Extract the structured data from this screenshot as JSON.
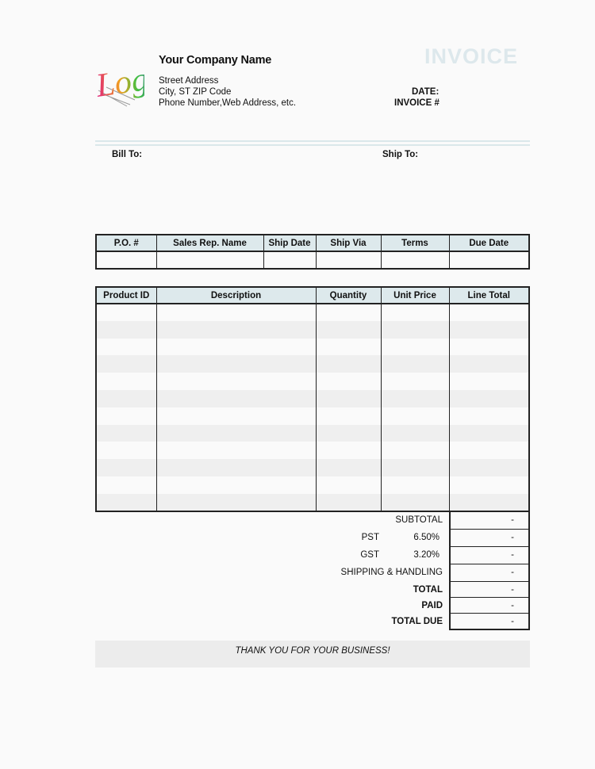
{
  "logo": {
    "text": "Logo"
  },
  "company": {
    "name": "Your Company Name",
    "street": "Street Address",
    "city": "City, ST  ZIP Code",
    "contact": "Phone Number,Web Address, etc."
  },
  "title": "INVOICE",
  "meta": {
    "date_label": "DATE:",
    "invoice_label": "INVOICE #"
  },
  "bill_to": "Bill To:",
  "ship_to": "Ship To:",
  "order_table": {
    "headers": [
      "P.O. #",
      "Sales Rep. Name",
      "Ship Date",
      "Ship Via",
      "Terms",
      "Due Date"
    ]
  },
  "items_table": {
    "headers": [
      "Product ID",
      "Description",
      "Quantity",
      "Unit Price",
      "Line Total"
    ],
    "row_count": 12
  },
  "totals": [
    {
      "label": "SUBTOTAL",
      "rate": "",
      "value": "-",
      "bold": false
    },
    {
      "label": "PST",
      "rate": "6.50%",
      "value": "-",
      "bold": false
    },
    {
      "label": "GST",
      "rate": "3.20%",
      "value": "-",
      "bold": false
    },
    {
      "label": "SHIPPING & HANDLING",
      "rate": "",
      "value": "-",
      "bold": false
    },
    {
      "label": "TOTAL",
      "rate": "",
      "value": "-",
      "bold": true
    },
    {
      "label": "PAID",
      "rate": "",
      "value": "-",
      "bold": true
    },
    {
      "label": "TOTAL DUE",
      "rate": "",
      "value": "-",
      "bold": true
    }
  ],
  "footer": "THANK YOU FOR YOUR BUSINESS!",
  "colors": {
    "header_fill": "#dde9ec",
    "title": "#dde8ec",
    "stripe": "#efefef"
  }
}
